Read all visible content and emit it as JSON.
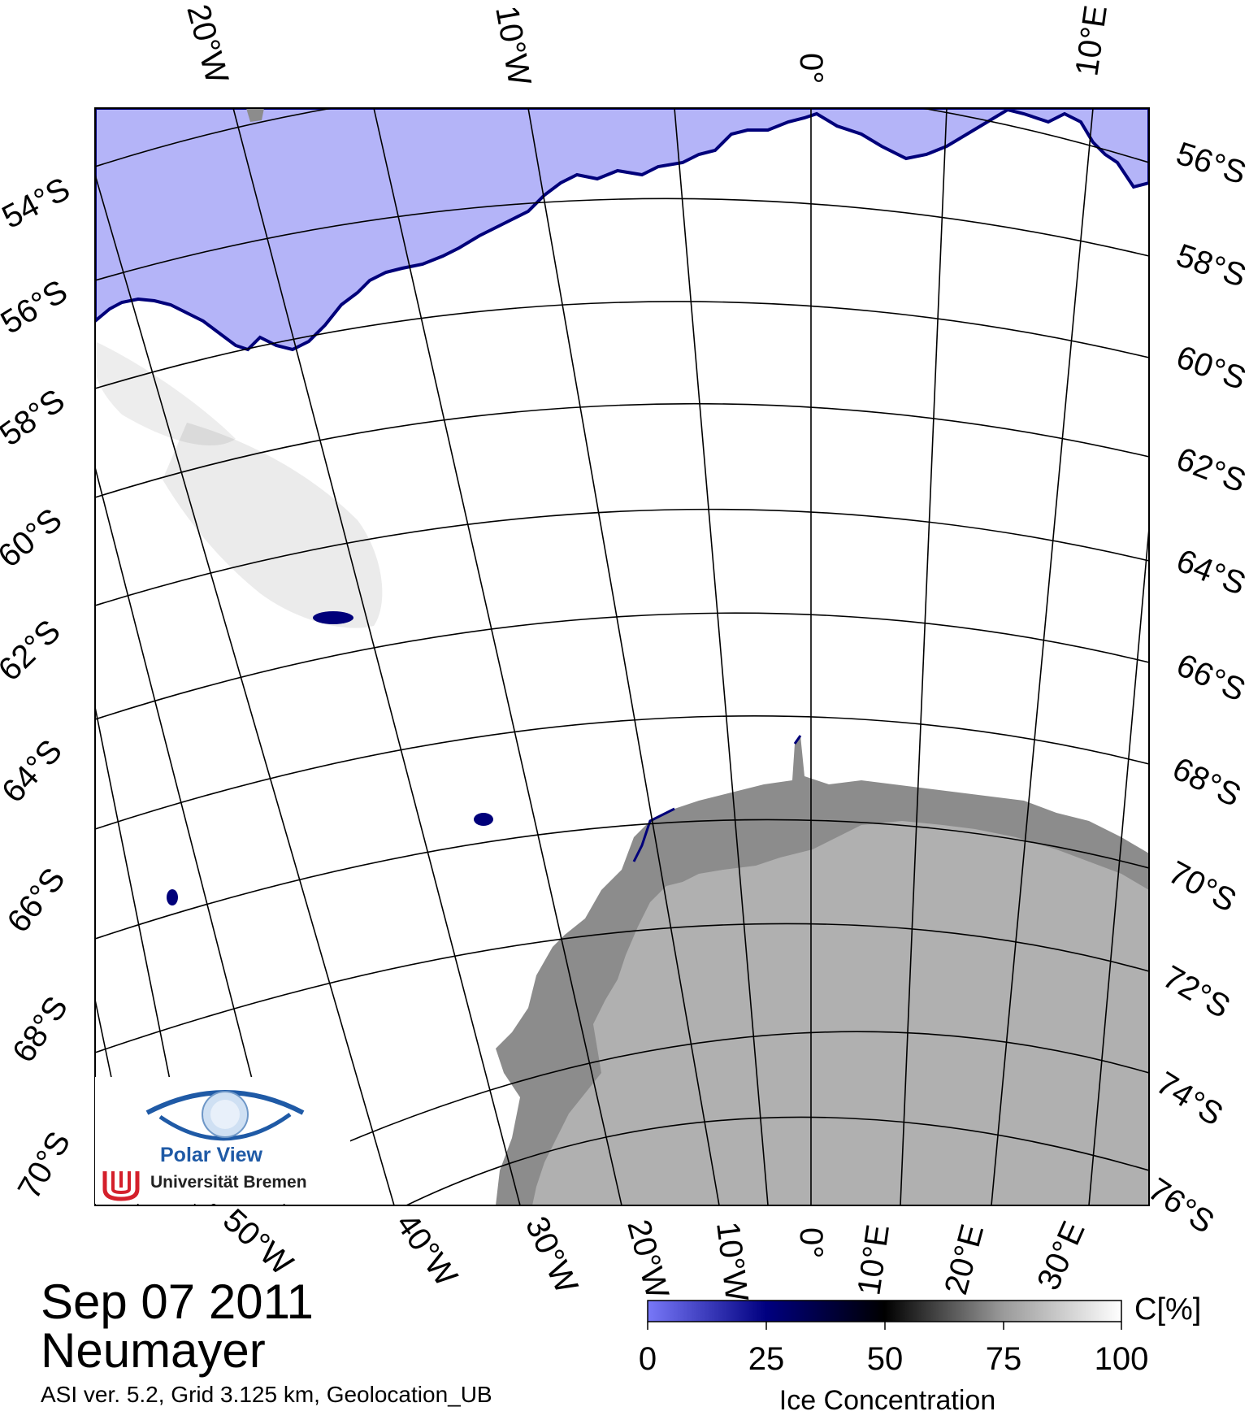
{
  "map": {
    "date": "Sep 07 2011",
    "station": "Neumayer",
    "info_line": "ASI ver. 5.2,  Grid 3.125 km, Geolocation_UB",
    "top_lon_labels": [
      "20°W",
      "10°W",
      "0°",
      "10°E"
    ],
    "bottom_lon_labels": [
      "50°W",
      "40°W",
      "30°W",
      "20°W",
      "10°W",
      "0°",
      "10°E",
      "20°E",
      "30°E"
    ],
    "left_lat_labels": [
      "54°S",
      "56°S",
      "58°S",
      "60°S",
      "62°S",
      "64°S",
      "66°S",
      "68°S",
      "70°S"
    ],
    "right_lat_labels": [
      "56°S",
      "58°S",
      "60°S",
      "62°S",
      "64°S",
      "66°S",
      "68°S",
      "70°S",
      "72°S",
      "74°S",
      "76°S"
    ],
    "colors": {
      "open_water": "#b4b4f8",
      "ice_edge": "#00007a",
      "land_ice_shelf": "#8c8c8c",
      "land": "#b0b0b0",
      "graticule": "#000000"
    }
  },
  "colorbar": {
    "unit": "C[%]",
    "title": "Ice Concentration",
    "ticks": [
      "0",
      "25",
      "50",
      "75",
      "100"
    ],
    "stops": [
      "#7878f8",
      "#000080",
      "#000000",
      "#9a9a9a",
      "#ffffff"
    ]
  },
  "logo": {
    "name": "Polar View",
    "institution": "Universität Bremen",
    "eye_icon": "eye-globe-icon",
    "uni_icon": "uni-bremen-icon"
  }
}
